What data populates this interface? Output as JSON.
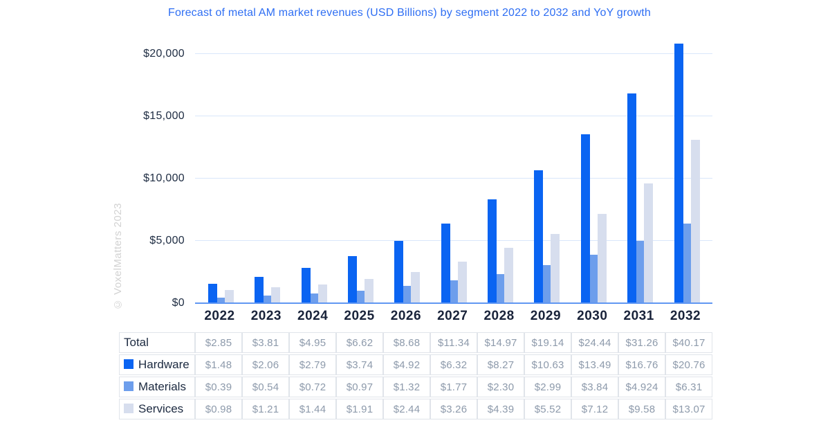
{
  "title": "Forecast of metal AM market revenues (USD Billions) by segment 2022 to 2032 and YoY growth",
  "watermark": "© VoxelMatters 2023",
  "colors": {
    "title_text": "#2e6ef3",
    "hardware": "#0a64f2",
    "materials": "#6d9eec",
    "services": "#d7deee",
    "gridline": "#d9e6fa",
    "baseline": "#6097f2",
    "axis_text": "#19233a",
    "table_label_text": "#1c2a40",
    "table_value_text": "#8d9aab",
    "table_border": "#e0e4ea",
    "watermark_text": "#d2d2d2"
  },
  "chart_data": {
    "type": "bar",
    "title": "Forecast of metal AM market revenues (USD Billions) by segment 2022 to 2032 and YoY growth",
    "unit": "USD Billions",
    "categories": [
      "2022",
      "2023",
      "2024",
      "2025",
      "2026",
      "2027",
      "2028",
      "2029",
      "2030",
      "2031",
      "2032"
    ],
    "series": [
      {
        "name": "Hardware",
        "color": "#0a64f2",
        "values": [
          1.48,
          2.06,
          2.79,
          3.74,
          4.92,
          6.32,
          8.27,
          10.63,
          13.49,
          16.76,
          20.76
        ]
      },
      {
        "name": "Materials",
        "color": "#6d9eec",
        "values": [
          0.39,
          0.54,
          0.72,
          0.97,
          1.32,
          1.77,
          2.3,
          2.99,
          3.84,
          4.924,
          6.31
        ]
      },
      {
        "name": "Services",
        "color": "#d7deee",
        "values": [
          0.98,
          1.21,
          1.44,
          1.91,
          2.44,
          3.26,
          4.39,
          5.52,
          7.12,
          9.58,
          13.07
        ]
      }
    ],
    "totals": [
      2.85,
      3.81,
      4.95,
      6.62,
      8.68,
      11.34,
      14.97,
      19.14,
      24.44,
      31.26,
      40.17
    ],
    "y_axis": {
      "tick_labels": [
        "$0",
        "$5,000",
        "$10,000",
        "$15,000",
        "$20,000"
      ],
      "tick_values_millions": [
        0,
        5000,
        10000,
        15000,
        20000
      ],
      "ylim_millions": [
        0,
        21200
      ]
    },
    "grid": true,
    "legend_position": "table-left-column"
  },
  "table": {
    "rows": [
      {
        "label": "Total",
        "swatch": null,
        "values": [
          "$2.85",
          "$3.81",
          "$4.95",
          "$6.62",
          "$8.68",
          "$11.34",
          "$14.97",
          "$19.14",
          "$24.44",
          "$31.26",
          "$40.17"
        ]
      },
      {
        "label": "Hardware",
        "swatch": "#0a64f2",
        "values": [
          "$1.48",
          "$2.06",
          "$2.79",
          "$3.74",
          "$4.92",
          "$6.32",
          "$8.27",
          "$10.63",
          "$13.49",
          "$16.76",
          "$20.76"
        ]
      },
      {
        "label": "Materials",
        "swatch": "#6d9eec",
        "values": [
          "$0.39",
          "$0.54",
          "$0.72",
          "$0.97",
          "$1.32",
          "$1.77",
          "$2.30",
          "$2.99",
          "$3.84",
          "$4.924",
          "$6.31"
        ]
      },
      {
        "label": "Services",
        "swatch": "#d7deee",
        "values": [
          "$0.98",
          "$1.21",
          "$1.44",
          "$1.91",
          "$2.44",
          "$3.26",
          "$4.39",
          "$5.52",
          "$7.12",
          "$9.58",
          "$13.07"
        ]
      }
    ]
  }
}
